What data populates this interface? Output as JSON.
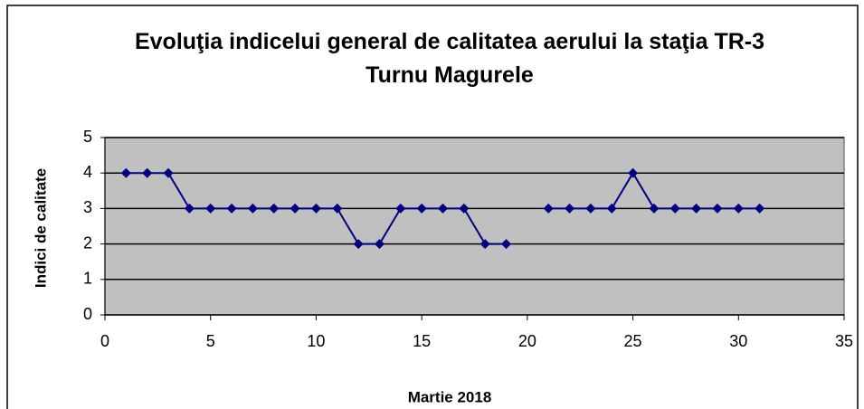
{
  "chart_data": {
    "type": "line",
    "title": "Evoluţia indicelui general de calitatea aerului la staţia TR-3 Turnu Magurele",
    "x_label": "Martie 2018",
    "y_label": "Indici de calitate",
    "x": [
      1,
      2,
      3,
      4,
      5,
      6,
      7,
      8,
      9,
      10,
      11,
      12,
      13,
      14,
      15,
      16,
      17,
      18,
      19,
      20,
      21,
      22,
      23,
      24,
      25,
      26,
      27,
      28,
      29,
      30,
      31
    ],
    "series": [
      {
        "color": "#000080",
        "values": [
          4,
          4,
          4,
          3,
          3,
          3,
          3,
          3,
          3,
          3,
          3,
          2,
          2,
          3,
          3,
          3,
          3,
          2,
          2,
          null,
          3,
          3,
          3,
          3,
          4,
          3,
          3,
          3,
          3,
          3,
          3
        ]
      }
    ],
    "xlim": [
      0,
      35
    ],
    "xticks": [
      0,
      5,
      10,
      15,
      20,
      25,
      30,
      35
    ],
    "ylim": [
      0,
      5
    ],
    "yticks": [
      0,
      1,
      2,
      3,
      4,
      5
    ],
    "grid": true,
    "plot_background": "#c0c0c0"
  }
}
